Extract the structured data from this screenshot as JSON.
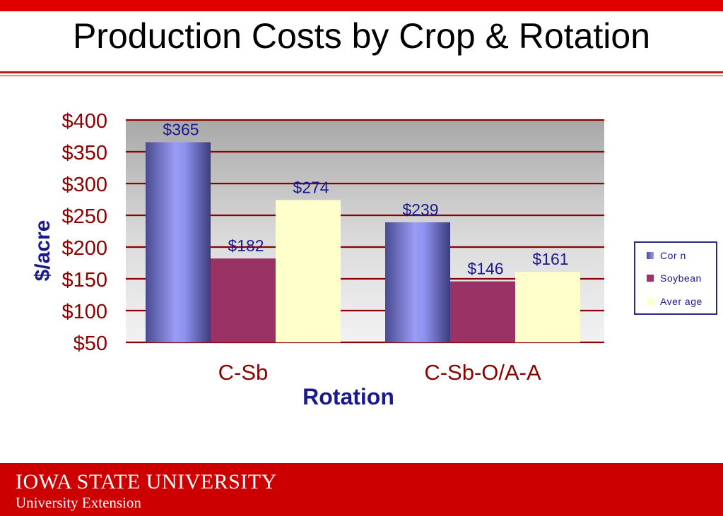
{
  "slide": {
    "title": "Production Costs by Crop & Rotation",
    "footer_line1": "IOWA STATE UNIVERSITY",
    "footer_line2": "University Extension"
  },
  "colors": {
    "brand_red": "#cc0000",
    "corn": "#8f92f0",
    "soybean": "#993366",
    "average": "#ffffcc",
    "axis_text": "#8b0000",
    "label_text": "#1a1a8c"
  },
  "chart_data": {
    "type": "bar",
    "title": "",
    "xlabel": "Rotation",
    "ylabel": "$/acre",
    "categories": [
      "C-Sb",
      "C-Sb-O/A-A"
    ],
    "series": [
      {
        "name": "Corn",
        "legend_label": "Cor n",
        "values": [
          365,
          239
        ],
        "labels": [
          "$365",
          "$239"
        ]
      },
      {
        "name": "Soybean",
        "legend_label": "Soybean",
        "values": [
          182,
          146
        ],
        "labels": [
          "$182",
          "$146"
        ]
      },
      {
        "name": "Average",
        "legend_label": "Aver age",
        "values": [
          274,
          161
        ],
        "labels": [
          "$274",
          "$161"
        ]
      }
    ],
    "ylim": [
      50,
      400
    ],
    "yticks": [
      50,
      100,
      150,
      200,
      250,
      300,
      350,
      400
    ],
    "ytick_labels": [
      "$50",
      "$100",
      "$150",
      "$200",
      "$250",
      "$300",
      "$350",
      "$400"
    ],
    "grid": true,
    "legend_position": "right"
  }
}
